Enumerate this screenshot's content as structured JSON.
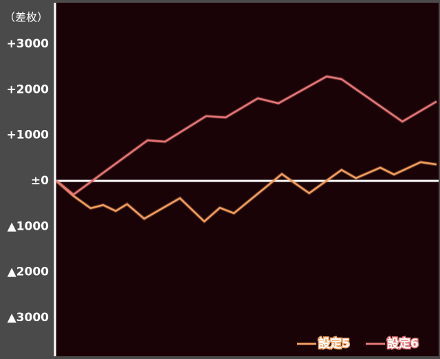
{
  "chart_data": {
    "type": "line",
    "title": "（差枚）",
    "xlim": [
      0,
      100
    ],
    "ylim": [
      -3830,
      3890
    ],
    "yticks": [
      {
        "value": 3000,
        "label": "+3000"
      },
      {
        "value": 2000,
        "label": "+2000"
      },
      {
        "value": 1000,
        "label": "+1000"
      },
      {
        "value": 0,
        "label": "±0"
      },
      {
        "value": -1000,
        "label": "▲1000"
      },
      {
        "value": -2000,
        "label": "▲2000"
      },
      {
        "value": -3000,
        "label": "▲3000"
      }
    ],
    "zero_line": true,
    "legend": "bottom-right",
    "series": [
      {
        "name": "設定5",
        "color": "#f4a060",
        "x": [
          0,
          4.5,
          9,
          12.3,
          15.6,
          18.6,
          23.1,
          32.5,
          38.9,
          43,
          46.7,
          59.3,
          66.5,
          75,
          78.8,
          85.2,
          88.8,
          95.8,
          100
        ],
        "values": [
          0,
          -330,
          -600,
          -530,
          -660,
          -510,
          -830,
          -380,
          -890,
          -590,
          -710,
          150,
          -270,
          240,
          60,
          290,
          140,
          410,
          360
        ]
      },
      {
        "name": "設定6",
        "color": "#e87878",
        "x": [
          0,
          4.5,
          24,
          28.6,
          39.4,
          44.5,
          53,
          58.4,
          71.1,
          75,
          91,
          100
        ],
        "values": [
          0,
          -300,
          890,
          860,
          1420,
          1390,
          1810,
          1700,
          2290,
          2230,
          1300,
          1740
        ]
      }
    ]
  }
}
